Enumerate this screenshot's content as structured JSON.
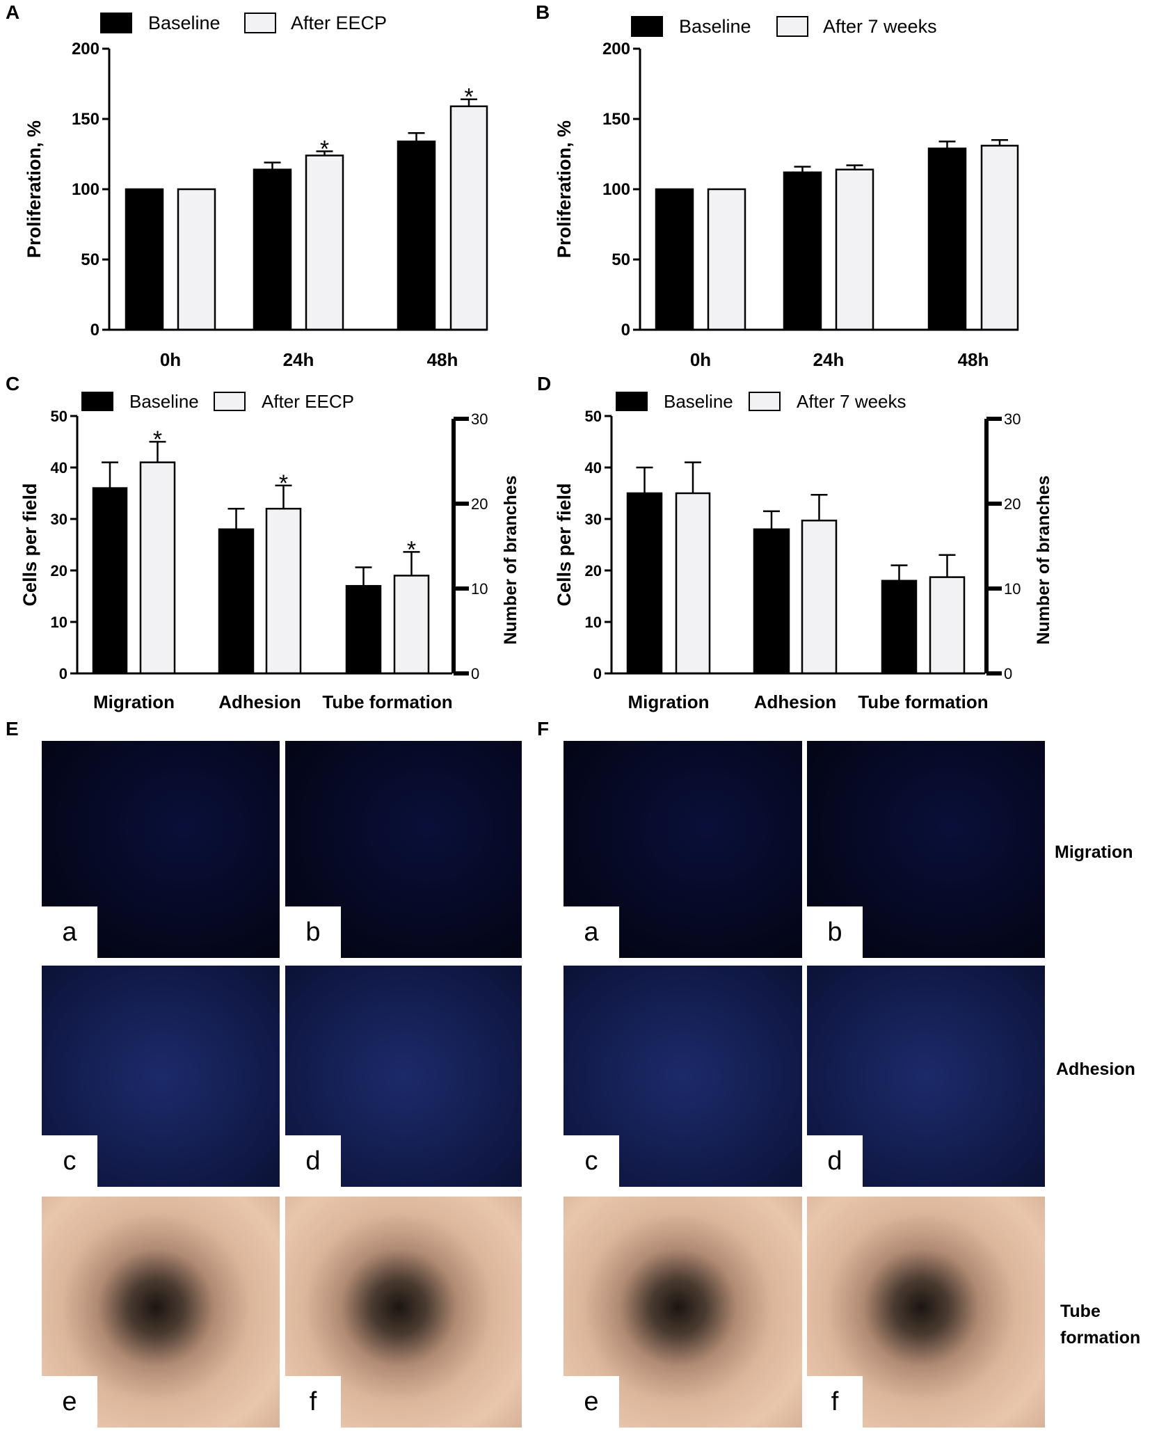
{
  "panels": {
    "A": "A",
    "B": "B",
    "C": "C",
    "D": "D",
    "E": "E",
    "F": "F"
  },
  "chart_data": [
    {
      "id": "A",
      "type": "bar",
      "categories": [
        "0h",
        "24h",
        "48h"
      ],
      "series": [
        {
          "name": "Baseline",
          "values": [
            100,
            114,
            134
          ],
          "errors": [
            0,
            5,
            6
          ]
        },
        {
          "name": "After EECP",
          "values": [
            100,
            124,
            159
          ],
          "errors": [
            0,
            3,
            5
          ]
        }
      ],
      "significance": [
        [
          false,
          false
        ],
        [
          false,
          true
        ],
        [
          false,
          true
        ]
      ],
      "ylabel": "Proliferation, %",
      "ylim": [
        0,
        200
      ],
      "yticks": [
        0,
        50,
        100,
        150,
        200
      ],
      "legend": "top"
    },
    {
      "id": "B",
      "type": "bar",
      "categories": [
        "0h",
        "24h",
        "48h"
      ],
      "series": [
        {
          "name": "Baseline",
          "values": [
            100,
            112,
            129
          ],
          "errors": [
            0,
            4,
            5
          ]
        },
        {
          "name": "After 7 weeks",
          "values": [
            100,
            114,
            131
          ],
          "errors": [
            0,
            3,
            4
          ]
        }
      ],
      "significance": [
        [
          false,
          false
        ],
        [
          false,
          false
        ],
        [
          false,
          false
        ]
      ],
      "ylabel": "Proliferation, %",
      "ylim": [
        0,
        200
      ],
      "yticks": [
        0,
        50,
        100,
        150,
        200
      ],
      "legend": "top"
    },
    {
      "id": "C",
      "type": "bar",
      "categories": [
        "Migration",
        "Adhesion",
        "Tube formation"
      ],
      "series": [
        {
          "name": "Baseline",
          "values": [
            36,
            28,
            17
          ],
          "errors": [
            5,
            4,
            3.6
          ]
        },
        {
          "name": "After EECP",
          "values": [
            41,
            32,
            19
          ],
          "errors": [
            4,
            4.5,
            4.6
          ]
        }
      ],
      "significance": [
        [
          false,
          true
        ],
        [
          false,
          true
        ],
        [
          false,
          true
        ]
      ],
      "ylabel": "Cells per field",
      "ylim": [
        0,
        50
      ],
      "yticks": [
        0,
        10,
        20,
        30,
        40,
        50
      ],
      "y2label": "Number  of branches",
      "y2lim": [
        0,
        30
      ],
      "y2ticks": [
        0,
        10,
        20,
        30
      ],
      "legend": "top"
    },
    {
      "id": "D",
      "type": "bar",
      "categories": [
        "Migration",
        "Adhesion",
        "Tube formation"
      ],
      "series": [
        {
          "name": "Baseline",
          "values": [
            35,
            28,
            18
          ],
          "errors": [
            5,
            3.5,
            3
          ]
        },
        {
          "name": "After 7 weeks",
          "values": [
            35,
            29.7,
            18.7
          ],
          "errors": [
            6,
            5,
            4.3
          ]
        }
      ],
      "significance": [
        [
          false,
          false
        ],
        [
          false,
          false
        ],
        [
          false,
          false
        ]
      ],
      "ylabel": "Cells per field",
      "ylim": [
        0,
        50
      ],
      "yticks": [
        0,
        10,
        20,
        30,
        40,
        50
      ],
      "y2label": "Number  of branches",
      "y2lim": [
        0,
        30
      ],
      "y2ticks": [
        0,
        10,
        20,
        30
      ],
      "legend": "top"
    }
  ],
  "micrographs": {
    "E": {
      "labels": [
        "a",
        "b",
        "c",
        "d",
        "e",
        "f"
      ]
    },
    "F": {
      "labels": [
        "a",
        "b",
        "c",
        "d",
        "e",
        "f"
      ]
    },
    "row_labels": {
      "migration": "Migration",
      "adhesion": "Adhesion",
      "tube_line1": "Tube",
      "tube_line2": "formation"
    }
  },
  "colors": {
    "baseline": "#000000",
    "after": "#f2f2f4",
    "axis": "#000000"
  }
}
